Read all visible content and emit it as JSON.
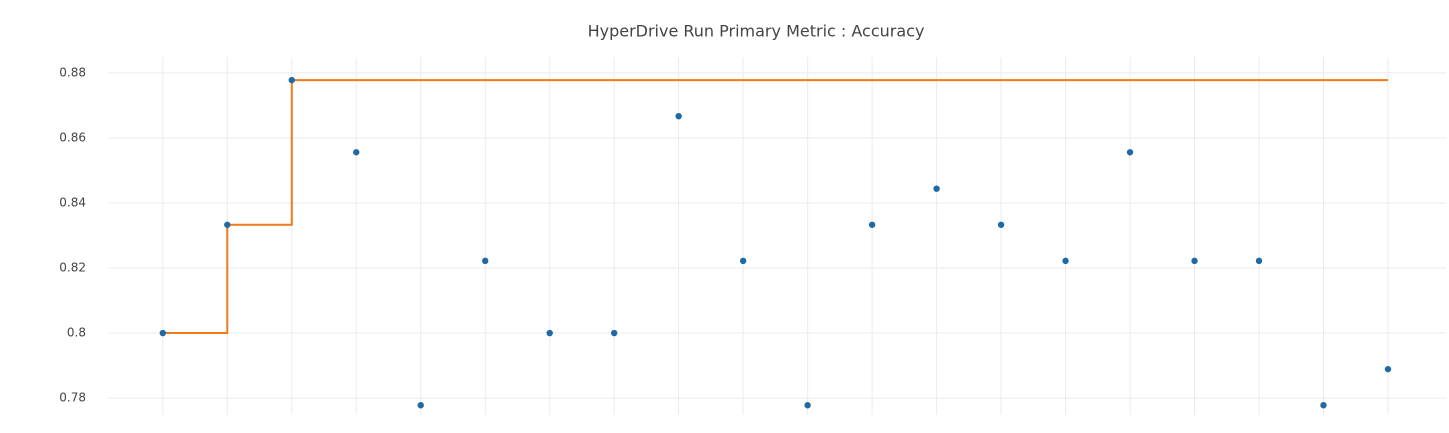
{
  "chart_data": {
    "type": "scatter",
    "title": "HyperDrive Run Primary Metric : Accuracy",
    "x": [
      0,
      1,
      2,
      3,
      4,
      5,
      6,
      7,
      8,
      9,
      10,
      11,
      12,
      13,
      14,
      15,
      16,
      17,
      18,
      19
    ],
    "series": [
      {
        "color": "#1f6aa5",
        "mode": "markers",
        "values": [
          0.8,
          0.8333,
          0.8778,
          0.8556,
          0.7778,
          0.8222,
          0.8,
          0.8,
          0.8667,
          0.8222,
          0.7778,
          0.8333,
          0.8444,
          0.8333,
          0.8222,
          0.8556,
          0.8222,
          0.8222,
          0.7778,
          0.7889
        ]
      },
      {
        "color": "#f07a1a",
        "mode": "step",
        "values": [
          0.8,
          0.8333,
          0.8778,
          0.8778,
          0.8778,
          0.8778,
          0.8778,
          0.8778,
          0.8778,
          0.8778,
          0.8778,
          0.8778,
          0.8778,
          0.8778,
          0.8778,
          0.8778,
          0.8778,
          0.8778,
          0.8778,
          0.8778
        ]
      }
    ],
    "xlim": [
      -0.85,
      19.9
    ],
    "xticks": [
      0,
      1,
      2,
      3,
      4,
      5,
      6,
      7,
      8,
      9,
      10,
      11,
      12,
      13,
      14,
      15,
      16,
      17,
      18,
      19
    ],
    "ylim": [
      0.7748,
      0.8849
    ],
    "yticks": [
      0.78,
      0.8,
      0.82,
      0.84,
      0.86,
      0.88
    ],
    "grid": true
  }
}
